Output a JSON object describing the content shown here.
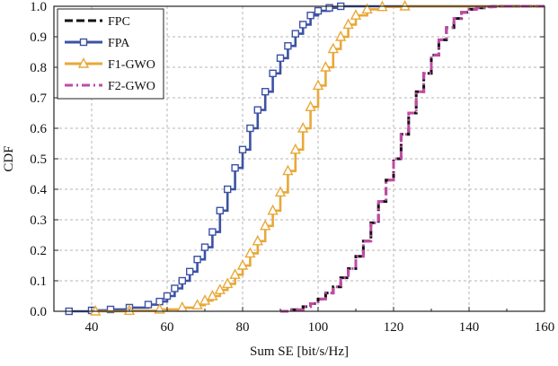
{
  "chart_data": {
    "type": "line",
    "title": "",
    "xlabel": "Sum SE [bit/s/Hz]",
    "ylabel": "CDF",
    "xlim": [
      30,
      160
    ],
    "ylim": [
      0,
      1
    ],
    "xticks": [
      40,
      60,
      80,
      100,
      120,
      140,
      160
    ],
    "yticks": [
      0.0,
      0.1,
      0.2,
      0.3,
      0.4,
      0.5,
      0.6,
      0.7,
      0.8,
      0.9,
      1.0
    ],
    "x_tick_labels": [
      "40",
      "60",
      "80",
      "100",
      "120",
      "140",
      "160"
    ],
    "y_tick_labels": [
      "0.0",
      "0.1",
      "0.2",
      "0.3",
      "0.4",
      "0.5",
      "0.6",
      "0.7",
      "0.8",
      "0.9",
      "1.0"
    ],
    "grid": true,
    "legend_position": "top-left",
    "series": [
      {
        "name": "FPC",
        "color": "#111111",
        "style": "dashed",
        "marker": "none",
        "x": [
          90,
          93,
          96,
          98,
          100,
          102,
          104,
          106,
          108,
          110,
          112,
          114,
          116,
          118,
          120,
          122,
          124,
          126,
          128,
          130,
          132,
          134,
          136,
          138,
          140,
          142,
          144,
          146,
          148
        ],
        "y": [
          0.0,
          0.005,
          0.015,
          0.025,
          0.04,
          0.06,
          0.08,
          0.11,
          0.14,
          0.18,
          0.23,
          0.29,
          0.36,
          0.43,
          0.5,
          0.58,
          0.65,
          0.72,
          0.78,
          0.84,
          0.89,
          0.93,
          0.96,
          0.98,
          0.99,
          0.995,
          0.998,
          1.0,
          1.0
        ]
      },
      {
        "name": "FPA",
        "color": "#3c52a3",
        "style": "solid",
        "marker": "square",
        "x": [
          34,
          40,
          45,
          50,
          55,
          58,
          60,
          62,
          64,
          66,
          68,
          70,
          72,
          74,
          76,
          78,
          80,
          82,
          84,
          86,
          88,
          90,
          92,
          94,
          96,
          98,
          100,
          103,
          106
        ],
        "y": [
          0.0,
          0.003,
          0.006,
          0.012,
          0.022,
          0.032,
          0.05,
          0.075,
          0.1,
          0.13,
          0.17,
          0.21,
          0.26,
          0.33,
          0.4,
          0.47,
          0.53,
          0.6,
          0.66,
          0.72,
          0.78,
          0.83,
          0.87,
          0.91,
          0.94,
          0.97,
          0.985,
          0.995,
          1.0
        ]
      },
      {
        "name": "F1-GWO",
        "color": "#e8a838",
        "style": "solid",
        "marker": "triangle",
        "x": [
          41,
          50,
          58,
          64,
          68,
          70,
          72,
          74,
          76,
          78,
          80,
          82,
          84,
          86,
          88,
          90,
          92,
          94,
          96,
          98,
          100,
          102,
          104,
          106,
          108,
          110,
          113,
          117,
          123
        ],
        "y": [
          0.0,
          0.002,
          0.006,
          0.012,
          0.02,
          0.035,
          0.05,
          0.07,
          0.09,
          0.12,
          0.15,
          0.19,
          0.23,
          0.28,
          0.33,
          0.39,
          0.46,
          0.53,
          0.6,
          0.67,
          0.74,
          0.8,
          0.86,
          0.9,
          0.94,
          0.97,
          0.99,
          0.998,
          1.0
        ]
      },
      {
        "name": "F2-GWO",
        "color": "#c24aa6",
        "style": "dashdot",
        "marker": "none",
        "x": [
          90,
          93,
          96,
          98,
          100,
          102,
          104,
          106,
          108,
          110,
          112,
          114,
          116,
          118,
          120,
          122,
          124,
          126,
          128,
          130,
          132,
          134,
          136,
          138,
          140,
          142,
          144,
          147,
          150
        ],
        "y": [
          0.0,
          0.005,
          0.015,
          0.025,
          0.04,
          0.06,
          0.08,
          0.11,
          0.14,
          0.18,
          0.23,
          0.29,
          0.36,
          0.43,
          0.5,
          0.58,
          0.65,
          0.72,
          0.78,
          0.84,
          0.89,
          0.93,
          0.96,
          0.98,
          0.99,
          0.995,
          0.998,
          1.0,
          1.0
        ]
      }
    ]
  }
}
